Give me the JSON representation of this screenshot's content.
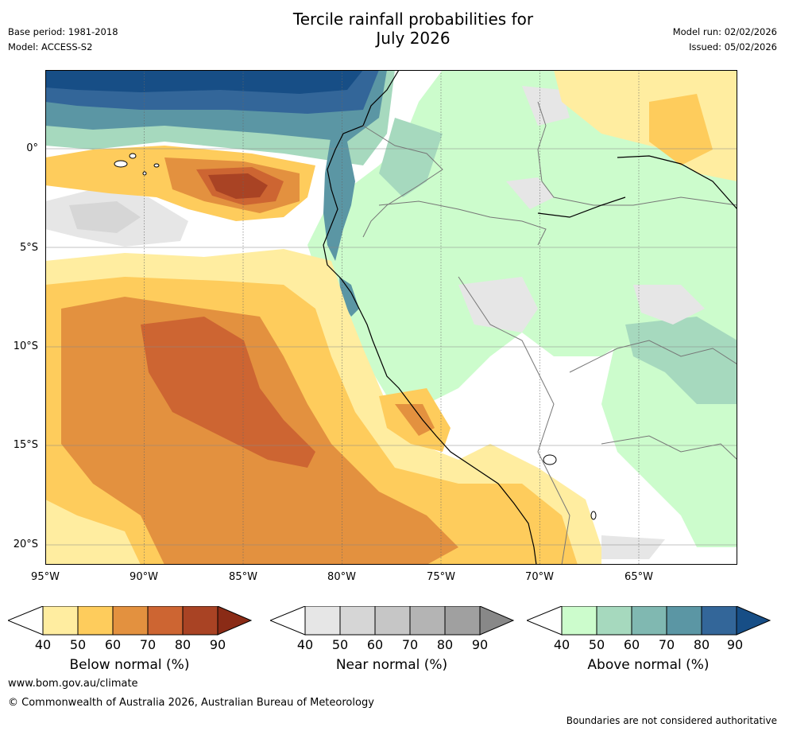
{
  "header": {
    "title_line1": "Tercile rainfall probabilities for",
    "title_line2": "July 2026",
    "base_period": "Base period: 1981-2018",
    "model": "Model: ACCESS-S2",
    "model_run": "Model run: 02/02/2026",
    "issued": "Issued: 05/02/2026"
  },
  "map": {
    "lat_labels": [
      "0°",
      "5°S",
      "10°S",
      "15°S",
      "20°S"
    ],
    "lon_labels": [
      "95°W",
      "90°W",
      "85°W",
      "80°W",
      "75°W",
      "70°W",
      "65°W"
    ]
  },
  "legends": [
    {
      "title": "Below normal (%)",
      "ticks": [
        "40",
        "50",
        "60",
        "70",
        "80",
        "90"
      ],
      "colors": [
        "#ffeda0",
        "#fecc5c",
        "#e3913f",
        "#cd6532",
        "#a94324",
        "#8a2b16"
      ]
    },
    {
      "title": "Near normal (%)",
      "ticks": [
        "40",
        "50",
        "60",
        "70",
        "80",
        "90"
      ],
      "colors": [
        "#e6e6e6",
        "#d6d6d6",
        "#c6c6c6",
        "#b4b4b4",
        "#a0a0a0",
        "#888888"
      ]
    },
    {
      "title": "Above normal (%)",
      "ticks": [
        "40",
        "50",
        "60",
        "70",
        "80",
        "90"
      ],
      "colors": [
        "#ccfccc",
        "#a6d9be",
        "#80b8b1",
        "#5b96a4",
        "#336699",
        "#174e86"
      ]
    }
  ],
  "footer": {
    "url": "www.bom.gov.au/climate",
    "copyright": "© Commonwealth of Australia 2026, Australian Bureau of Meteorology",
    "disclaimer": "Boundaries are not considered authoritative"
  }
}
